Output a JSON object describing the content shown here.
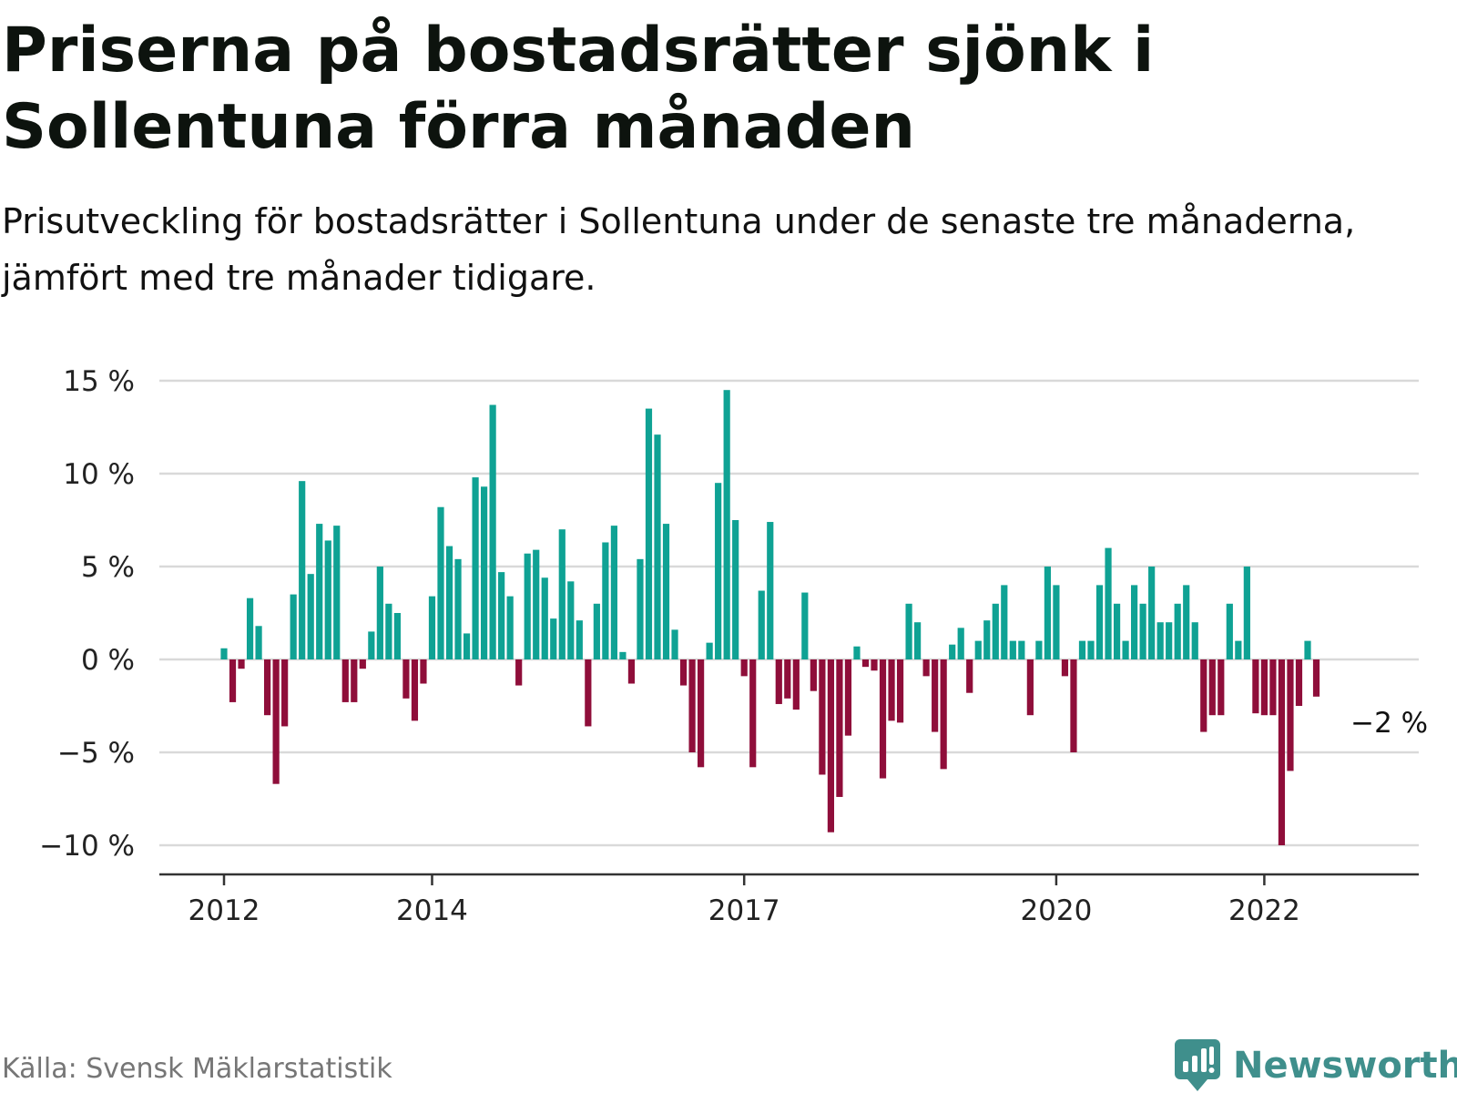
{
  "title": "Priserna på bostadsrätter sjönk i Sollentuna förra månaden",
  "subtitle": "Prisutveckling för bostadsrätter i Sollentuna under de senaste tre månaderna, jämfört med tre månader tidigare.",
  "source": "Källa: Svensk Mäklarstatistik",
  "brand": "Newsworthy",
  "colors": {
    "positive": "#0fa294",
    "negative": "#8f0e3a",
    "grid": "#d9d9d9",
    "axis": "#333333",
    "brand": "#3f8f8c"
  },
  "chart_data": {
    "type": "bar",
    "unit": "%",
    "ylim": [
      -11.5,
      16
    ],
    "yticks": [
      15,
      10,
      5,
      0,
      -5,
      -10
    ],
    "ytick_labels": [
      "15 %",
      "10 %",
      "5 %",
      "0 %",
      "−5 %",
      "−10 %"
    ],
    "xticks": [
      {
        "label": "2012",
        "month_index": 0
      },
      {
        "label": "2014",
        "month_index": 24
      },
      {
        "label": "2017",
        "month_index": 60
      },
      {
        "label": "2020",
        "month_index": 96
      },
      {
        "label": "2022",
        "month_index": 120
      }
    ],
    "month_range": [
      -7,
      138
    ],
    "grid": true,
    "annotation": {
      "text": "−2 %",
      "month_index": 131
    },
    "values": [
      0.6,
      -2.3,
      -0.5,
      3.3,
      1.8,
      -3.0,
      -6.7,
      -3.6,
      3.5,
      9.6,
      4.6,
      7.3,
      6.4,
      7.2,
      -2.3,
      -2.3,
      -0.5,
      1.5,
      5.0,
      3.0,
      2.5,
      -2.1,
      -3.3,
      -1.3,
      3.4,
      8.2,
      6.1,
      5.4,
      1.4,
      9.8,
      9.3,
      13.7,
      4.7,
      3.4,
      -1.4,
      5.7,
      5.9,
      4.4,
      2.2,
      7.0,
      4.2,
      2.1,
      -3.6,
      3.0,
      6.3,
      7.2,
      0.4,
      -1.3,
      5.4,
      13.5,
      12.1,
      7.3,
      1.6,
      -1.4,
      -5.0,
      -5.8,
      0.9,
      9.5,
      14.5,
      7.5,
      -0.9,
      -5.8,
      3.7,
      7.4,
      -2.4,
      -2.1,
      -2.7,
      3.6,
      -1.7,
      -6.2,
      -9.3,
      -7.4,
      -4.1,
      0.7,
      -0.4,
      -0.6,
      -6.4,
      -3.3,
      -3.4,
      3.0,
      2.0,
      -0.9,
      -3.9,
      -5.9,
      0.8,
      1.7,
      -1.8,
      1.0,
      2.1,
      3.0,
      4.0,
      1.0,
      1.0,
      -3.0,
      1.0,
      5.0,
      4.0,
      -0.9,
      -5.0,
      1.0,
      1.0,
      4.0,
      6.0,
      3.0,
      1.0,
      4.0,
      3.0,
      5.0,
      2.0,
      2.0,
      3.0,
      4.0,
      2.0,
      -3.9,
      -3.0,
      -3.0,
      3.0,
      1.0,
      5.0,
      -2.9,
      -3.0,
      -3.0,
      -10.0,
      -6.0,
      -2.5,
      1.0,
      -2.0
    ]
  }
}
